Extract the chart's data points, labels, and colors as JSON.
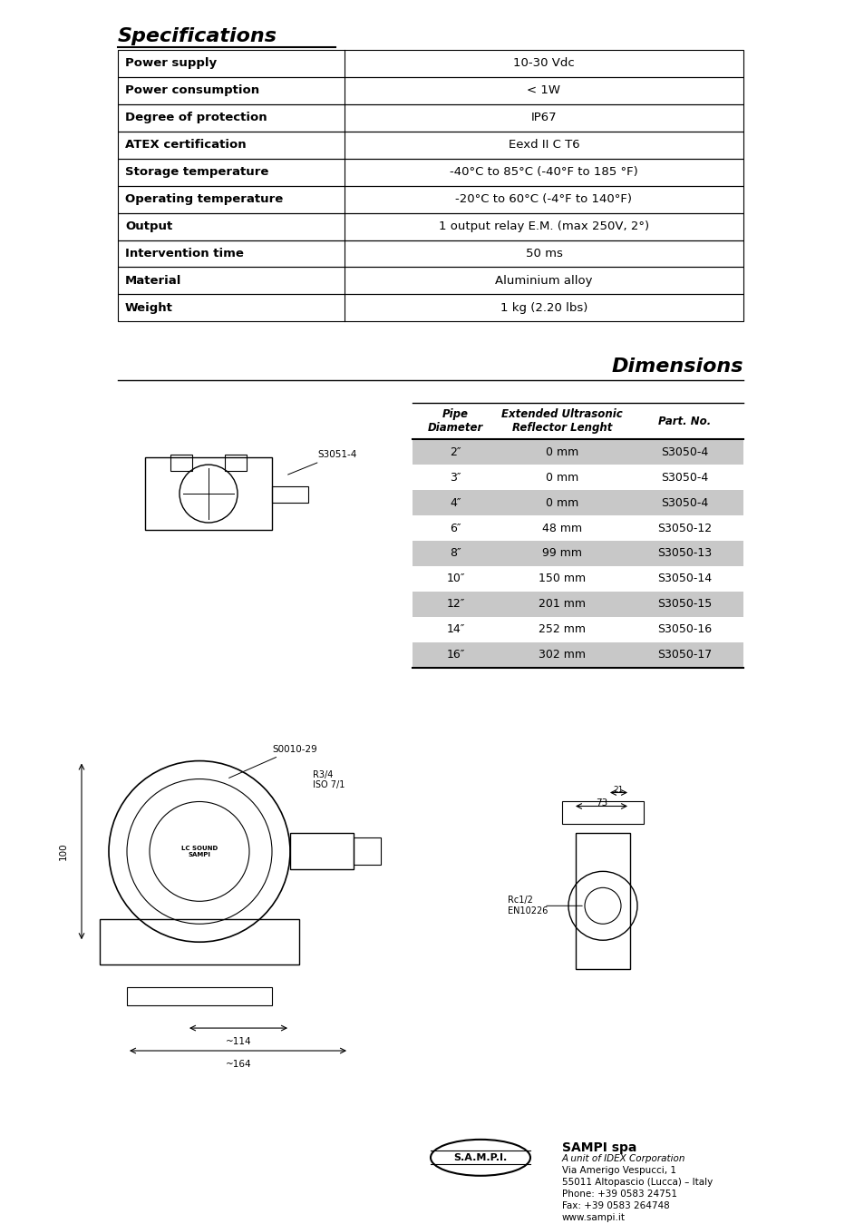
{
  "spec_title": "Specifications",
  "spec_rows": [
    [
      "Power supply",
      "10-30 Vdc"
    ],
    [
      "Power consumption",
      "< 1W"
    ],
    [
      "Degree of protection",
      "IP67"
    ],
    [
      "ATEX certification",
      "Eexd II C T6"
    ],
    [
      "Storage temperature",
      "-40°C to 85°C (-40°F to 185 °F)"
    ],
    [
      "Operating temperature",
      "-20°C to 60°C (-4°F to 140°F)"
    ],
    [
      "Output",
      "1 output relay E.M. (max 250V, 2°)"
    ],
    [
      "Intervention time",
      "50 ms"
    ],
    [
      "Material",
      "Aluminium alloy"
    ],
    [
      "Weight",
      "1 kg (2.20 lbs)"
    ]
  ],
  "dim_title": "Dimensions",
  "dim_headers": [
    "Pipe\nDiameter",
    "Extended Ultrasonic\nReflector Lenght",
    "Part. No."
  ],
  "dim_rows": [
    [
      "2″",
      "0 mm",
      "S3050-4"
    ],
    [
      "3″",
      "0 mm",
      "S3050-4"
    ],
    [
      "4″",
      "0 mm",
      "S3050-4"
    ],
    [
      "6″",
      "48 mm",
      "S3050-12"
    ],
    [
      "8″",
      "99 mm",
      "S3050-13"
    ],
    [
      "10″",
      "150 mm",
      "S3050-14"
    ],
    [
      "12″",
      "201 mm",
      "S3050-15"
    ],
    [
      "14″",
      "252 mm",
      "S3050-16"
    ],
    [
      "16″",
      "302 mm",
      "S3050-17"
    ]
  ],
  "dim_row_shaded": [
    0,
    2,
    4,
    6,
    8
  ],
  "footer_company": "SAMPI spa",
  "footer_lines": [
    "A unit of IDEX Corporation",
    "Via Amerigo Vespucci, 1",
    "55011 Altopascio (Lucca) – Italy",
    "Phone: +39 0583 24751",
    "Fax: +39 0583 264748",
    "www.sampi.it"
  ],
  "bg_color": "#ffffff",
  "table_border_color": "#000000",
  "shaded_row_color": "#cccccc",
  "header_bg": "#ffffff",
  "text_color": "#000000"
}
